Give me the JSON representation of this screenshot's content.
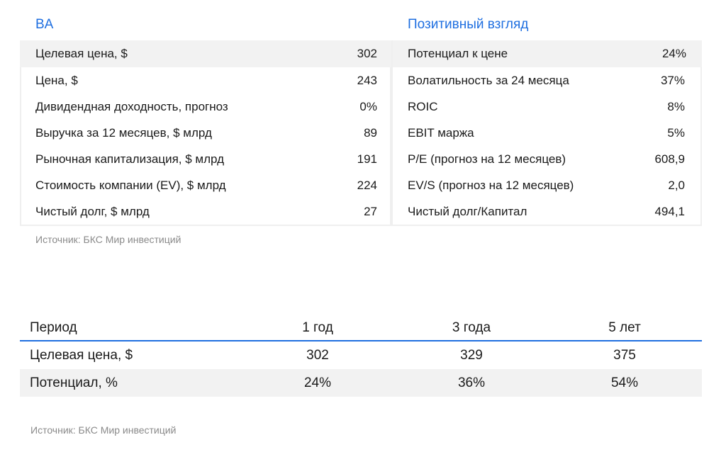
{
  "header": {
    "ticker": "BA",
    "view": "Позитивный взгляд"
  },
  "stats_left": [
    {
      "label": "Целевая цена, $",
      "value": "302"
    },
    {
      "label": "Цена, $",
      "value": "243"
    },
    {
      "label": "Дивидендная доходность, прогноз",
      "value": "0%"
    },
    {
      "label": "Выручка за 12 месяцев, $ млрд",
      "value": "89"
    },
    {
      "label": "Рыночная капитализация, $ млрд",
      "value": "191"
    },
    {
      "label": "Стоимость компании (EV), $ млрд",
      "value": "224"
    },
    {
      "label": "Чистый долг, $ млрд",
      "value": "27"
    }
  ],
  "stats_right": [
    {
      "label": "Потенциал к цене",
      "value": "24%"
    },
    {
      "label": "Волатильность за 24 месяца",
      "value": "37%"
    },
    {
      "label": "ROIC",
      "value": "8%"
    },
    {
      "label": "EBIT маржа",
      "value": "5%"
    },
    {
      "label": "P/E (прогноз на 12 месяцев)",
      "value": "608,9"
    },
    {
      "label": "EV/S (прогноз на 12 месяцев)",
      "value": "2,0"
    },
    {
      "label": "Чистый долг/Капитал",
      "value": "494,1"
    }
  ],
  "source_top": "Источник: БКС Мир инвестиций",
  "period_table": {
    "headers": [
      "Период",
      "1 год",
      "3 года",
      "5 лет"
    ],
    "rows": [
      [
        "Целевая цена, $",
        "302",
        "329",
        "375"
      ],
      [
        "Потенциал, %",
        "24%",
        "36%",
        "54%"
      ]
    ]
  },
  "source_bottom": "Источник: БКС Мир инвестиций",
  "colors": {
    "accent": "#1f6fe0",
    "shade": "#f2f2f2",
    "muted_text": "#8a8a8a"
  }
}
